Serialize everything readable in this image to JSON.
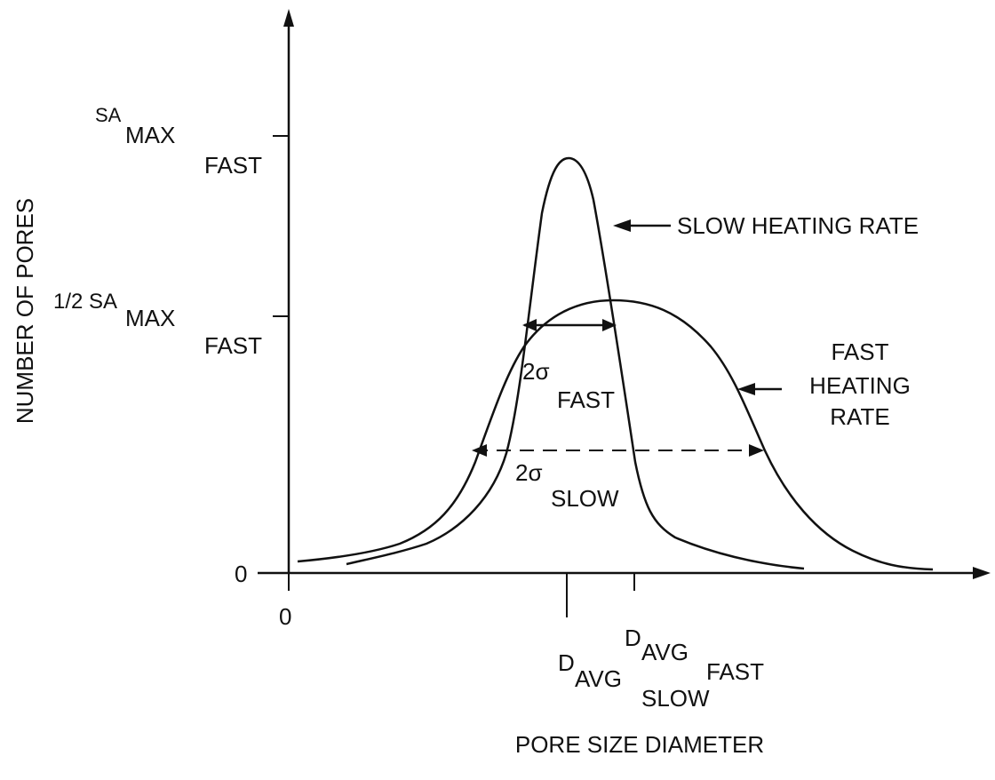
{
  "axes": {
    "xlabel": "PORE SIZE DIAMETER",
    "ylabel": "NUMBER OF PORES",
    "x_origin": "0",
    "y_origin": "0"
  },
  "y_ticks": {
    "max": {
      "main": "SA",
      "sub": "MAX",
      "subsub": "FAST"
    },
    "half": {
      "prefix": "1/2 SA",
      "sub": "MAX",
      "subsub": "FAST"
    }
  },
  "x_ticks": {
    "slow": {
      "main": "D",
      "sub": "AVG",
      "subsub": "SLOW"
    },
    "fast": {
      "main": "D",
      "sub": "AVG",
      "subsub": "FAST"
    }
  },
  "annotations": {
    "slow_curve": "SLOW HEATING RATE",
    "fast_curve_line1": "FAST",
    "fast_curve_line2": "HEATING",
    "fast_curve_line3": "RATE",
    "sigma_fast_main": "2σ",
    "sigma_fast_sub": "FAST",
    "sigma_slow_main": "2σ",
    "sigma_slow_sub": "SLOW"
  }
}
